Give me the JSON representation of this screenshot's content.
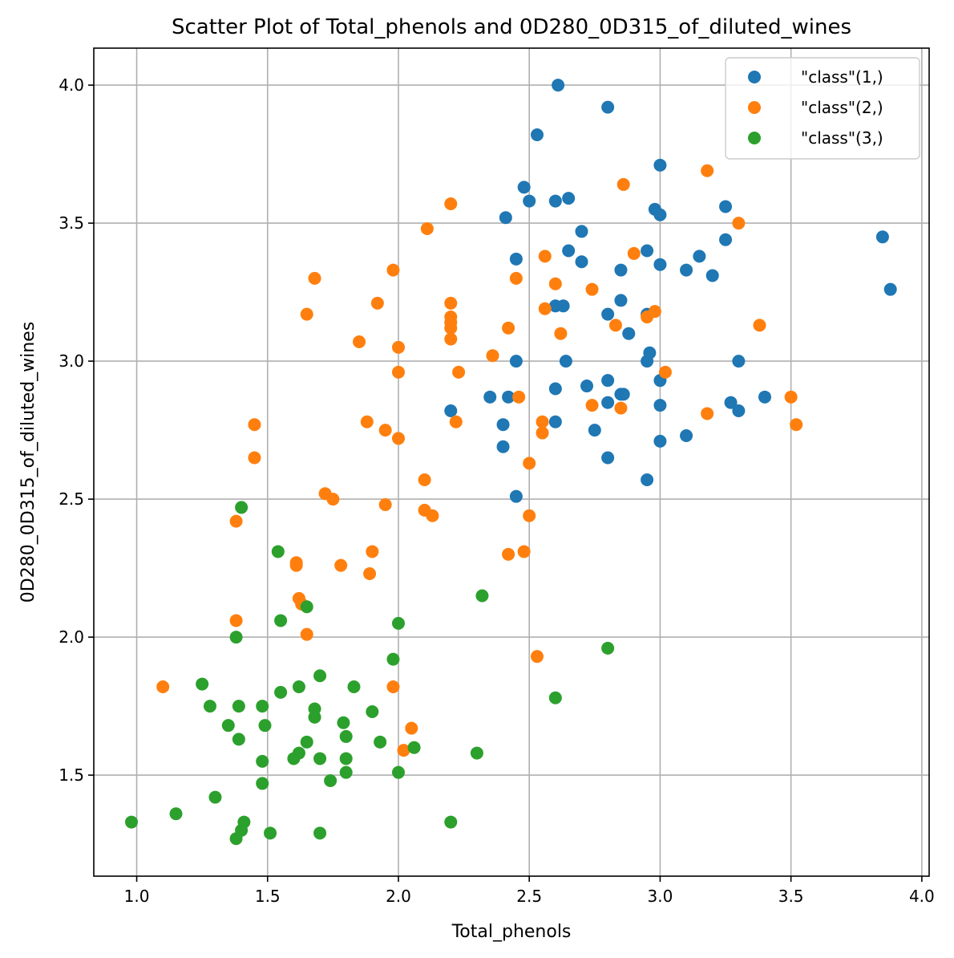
{
  "chart_data": {
    "type": "scatter",
    "title": "Scatter Plot of Total_phenols and 0D280_0D315_of_diluted_wines",
    "xlabel": "Total_phenols",
    "ylabel": "0D280_0D315_of_diluted_wines",
    "xlim": [
      0.836,
      4.028
    ],
    "ylim": [
      1.134,
      4.134
    ],
    "xticks": [
      "1.0",
      "1.5",
      "2.0",
      "2.5",
      "3.0",
      "3.5",
      "4.0"
    ],
    "yticks": [
      "1.5",
      "2.0",
      "2.5",
      "3.0",
      "3.5",
      "4.0"
    ],
    "grid": true,
    "legend_position": "top-right",
    "series": [
      {
        "name": "\"class\"(1,)",
        "color": "#1f77b4",
        "points": [
          [
            2.61,
            4.0
          ],
          [
            2.8,
            3.92
          ],
          [
            2.53,
            3.82
          ],
          [
            3.0,
            3.71
          ],
          [
            2.48,
            3.63
          ],
          [
            2.5,
            3.58
          ],
          [
            2.6,
            3.58
          ],
          [
            2.65,
            3.59
          ],
          [
            2.98,
            3.55
          ],
          [
            3.0,
            3.53
          ],
          [
            3.25,
            3.56
          ],
          [
            2.41,
            3.52
          ],
          [
            2.7,
            3.47
          ],
          [
            3.25,
            3.44
          ],
          [
            3.85,
            3.45
          ],
          [
            2.65,
            3.4
          ],
          [
            2.95,
            3.4
          ],
          [
            3.15,
            3.38
          ],
          [
            2.45,
            3.37
          ],
          [
            2.7,
            3.36
          ],
          [
            3.0,
            3.35
          ],
          [
            2.85,
            3.33
          ],
          [
            3.1,
            3.33
          ],
          [
            3.2,
            3.31
          ],
          [
            3.88,
            3.26
          ],
          [
            2.85,
            3.22
          ],
          [
            2.6,
            3.2
          ],
          [
            2.63,
            3.2
          ],
          [
            2.8,
            3.17
          ],
          [
            2.95,
            3.17
          ],
          [
            2.88,
            3.1
          ],
          [
            2.96,
            3.03
          ],
          [
            2.45,
            3.0
          ],
          [
            2.64,
            3.0
          ],
          [
            2.95,
            3.0
          ],
          [
            3.3,
            3.0
          ],
          [
            2.8,
            2.93
          ],
          [
            3.0,
            2.93
          ],
          [
            2.72,
            2.91
          ],
          [
            2.6,
            2.9
          ],
          [
            2.85,
            2.88
          ],
          [
            2.86,
            2.88
          ],
          [
            2.35,
            2.87
          ],
          [
            2.42,
            2.87
          ],
          [
            3.4,
            2.87
          ],
          [
            2.8,
            2.85
          ],
          [
            3.27,
            2.85
          ],
          [
            3.0,
            2.84
          ],
          [
            2.2,
            2.82
          ],
          [
            3.3,
            2.82
          ],
          [
            2.6,
            2.78
          ],
          [
            2.4,
            2.77
          ],
          [
            2.75,
            2.75
          ],
          [
            3.1,
            2.73
          ],
          [
            3.0,
            2.71
          ],
          [
            2.4,
            2.69
          ],
          [
            2.8,
            2.65
          ],
          [
            2.95,
            2.57
          ],
          [
            2.45,
            2.51
          ]
        ]
      },
      {
        "name": "\"class\"(2,)",
        "color": "#ff7f0e",
        "points": [
          [
            3.18,
            3.69
          ],
          [
            2.86,
            3.64
          ],
          [
            2.2,
            3.57
          ],
          [
            3.3,
            3.5
          ],
          [
            2.11,
            3.48
          ],
          [
            2.9,
            3.39
          ],
          [
            2.56,
            3.38
          ],
          [
            1.98,
            3.33
          ],
          [
            1.68,
            3.3
          ],
          [
            2.45,
            3.3
          ],
          [
            2.6,
            3.28
          ],
          [
            2.74,
            3.26
          ],
          [
            1.92,
            3.21
          ],
          [
            2.2,
            3.21
          ],
          [
            2.56,
            3.19
          ],
          [
            2.98,
            3.18
          ],
          [
            1.65,
            3.17
          ],
          [
            2.95,
            3.16
          ],
          [
            2.2,
            3.16
          ],
          [
            2.2,
            3.14
          ],
          [
            2.83,
            3.13
          ],
          [
            3.38,
            3.13
          ],
          [
            2.2,
            3.12
          ],
          [
            2.42,
            3.12
          ],
          [
            2.62,
            3.1
          ],
          [
            2.2,
            3.08
          ],
          [
            1.85,
            3.07
          ],
          [
            2.0,
            3.05
          ],
          [
            2.36,
            3.02
          ],
          [
            2.0,
            2.96
          ],
          [
            2.23,
            2.96
          ],
          [
            3.02,
            2.96
          ],
          [
            2.46,
            2.87
          ],
          [
            3.5,
            2.87
          ],
          [
            2.74,
            2.84
          ],
          [
            2.85,
            2.83
          ],
          [
            3.18,
            2.81
          ],
          [
            1.88,
            2.78
          ],
          [
            2.22,
            2.78
          ],
          [
            2.55,
            2.78
          ],
          [
            1.45,
            2.77
          ],
          [
            3.52,
            2.77
          ],
          [
            1.95,
            2.75
          ],
          [
            2.55,
            2.74
          ],
          [
            2.0,
            2.72
          ],
          [
            1.45,
            2.65
          ],
          [
            2.5,
            2.63
          ],
          [
            2.1,
            2.57
          ],
          [
            1.72,
            2.52
          ],
          [
            1.75,
            2.5
          ],
          [
            1.95,
            2.48
          ],
          [
            2.1,
            2.46
          ],
          [
            2.13,
            2.44
          ],
          [
            2.5,
            2.44
          ],
          [
            1.38,
            2.42
          ],
          [
            1.9,
            2.31
          ],
          [
            2.48,
            2.31
          ],
          [
            2.42,
            2.3
          ],
          [
            1.61,
            2.27
          ],
          [
            1.61,
            2.26
          ],
          [
            1.78,
            2.26
          ],
          [
            1.89,
            2.23
          ],
          [
            1.62,
            2.14
          ],
          [
            1.63,
            2.12
          ],
          [
            1.38,
            2.06
          ],
          [
            1.65,
            2.01
          ],
          [
            2.53,
            1.93
          ],
          [
            1.1,
            1.82
          ],
          [
            1.98,
            1.82
          ],
          [
            2.05,
            1.67
          ],
          [
            2.02,
            1.59
          ]
        ]
      },
      {
        "name": "\"class\"(3,)",
        "color": "#2ca02c",
        "points": [
          [
            1.4,
            2.47
          ],
          [
            1.54,
            2.31
          ],
          [
            2.32,
            2.15
          ],
          [
            1.65,
            2.11
          ],
          [
            1.55,
            2.06
          ],
          [
            2.0,
            2.05
          ],
          [
            1.38,
            2.0
          ],
          [
            2.8,
            1.96
          ],
          [
            1.98,
            1.92
          ],
          [
            1.7,
            1.86
          ],
          [
            1.25,
            1.83
          ],
          [
            1.62,
            1.82
          ],
          [
            1.83,
            1.82
          ],
          [
            1.55,
            1.8
          ],
          [
            2.6,
            1.78
          ],
          [
            1.28,
            1.75
          ],
          [
            1.39,
            1.75
          ],
          [
            1.48,
            1.75
          ],
          [
            1.68,
            1.74
          ],
          [
            1.9,
            1.73
          ],
          [
            1.68,
            1.71
          ],
          [
            1.79,
            1.69
          ],
          [
            1.35,
            1.68
          ],
          [
            1.49,
            1.68
          ],
          [
            1.8,
            1.64
          ],
          [
            1.39,
            1.63
          ],
          [
            1.65,
            1.62
          ],
          [
            1.93,
            1.62
          ],
          [
            2.06,
            1.6
          ],
          [
            1.62,
            1.58
          ],
          [
            2.3,
            1.58
          ],
          [
            1.6,
            1.56
          ],
          [
            1.7,
            1.56
          ],
          [
            1.8,
            1.56
          ],
          [
            1.48,
            1.55
          ],
          [
            1.8,
            1.51
          ],
          [
            2.0,
            1.51
          ],
          [
            1.74,
            1.48
          ],
          [
            1.48,
            1.47
          ],
          [
            1.3,
            1.42
          ],
          [
            1.15,
            1.36
          ],
          [
            0.98,
            1.33
          ],
          [
            1.41,
            1.33
          ],
          [
            2.2,
            1.33
          ],
          [
            1.4,
            1.3
          ],
          [
            1.51,
            1.29
          ],
          [
            1.7,
            1.29
          ],
          [
            1.38,
            1.27
          ]
        ]
      }
    ]
  }
}
